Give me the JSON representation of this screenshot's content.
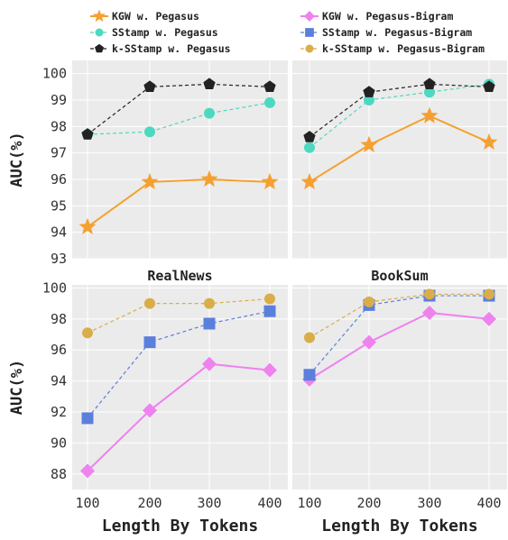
{
  "legend": [
    {
      "label": "KGW w. Pegasus",
      "marker": "star",
      "color": "#f5a030",
      "dashed": false
    },
    {
      "label": "SStamp w. Pegasus",
      "marker": "circle",
      "color": "#4dd8c0",
      "dashed": true
    },
    {
      "label": "k-SStamp w. Pegasus",
      "marker": "pentagon",
      "color": "#222222",
      "dashed": true
    },
    {
      "label": "KGW w. Pegasus-Bigram",
      "marker": "diamond",
      "color": "#ee82ee",
      "dashed": false
    },
    {
      "label": "SStamp w. Pegasus-Bigram",
      "marker": "square",
      "color": "#5b7fdc",
      "dashed": true
    },
    {
      "label": "k-SStamp w. Pegasus-Bigram",
      "marker": "circle",
      "color": "#d9ad48",
      "dashed": true
    }
  ],
  "chart_data": [
    {
      "type": "line",
      "title": "",
      "xlabel": "",
      "ylabel": "AUC(%)",
      "x": [
        100,
        200,
        300,
        400
      ],
      "ylim": [
        93,
        100.5
      ],
      "yticks": [
        93,
        94,
        95,
        96,
        97,
        98,
        99,
        100
      ],
      "grid": true,
      "series": [
        {
          "name": "KGW w. Pegasus",
          "values": [
            94.2,
            95.9,
            96.0,
            95.9
          ],
          "color": "#f5a030",
          "marker": "star",
          "dashed": false
        },
        {
          "name": "SStamp w. Pegasus",
          "values": [
            97.7,
            97.8,
            98.5,
            98.9
          ],
          "color": "#4dd8c0",
          "marker": "circle",
          "dashed": true
        },
        {
          "name": "k-SStamp w. Pegasus",
          "values": [
            97.7,
            99.5,
            99.6,
            99.5
          ],
          "color": "#222222",
          "marker": "pentagon",
          "dashed": true
        }
      ]
    },
    {
      "type": "line",
      "title": "",
      "xlabel": "",
      "ylabel": "",
      "x": [
        100,
        200,
        300,
        400
      ],
      "ylim": [
        93,
        100.5
      ],
      "yticks": [
        93,
        94,
        95,
        96,
        97,
        98,
        99,
        100
      ],
      "grid": true,
      "series": [
        {
          "name": "KGW w. Pegasus",
          "values": [
            95.9,
            97.3,
            98.4,
            97.4
          ],
          "color": "#f5a030",
          "marker": "star",
          "dashed": false
        },
        {
          "name": "SStamp w. Pegasus",
          "values": [
            97.2,
            99.0,
            99.3,
            99.6
          ],
          "color": "#4dd8c0",
          "marker": "circle",
          "dashed": true
        },
        {
          "name": "k-SStamp w. Pegasus",
          "values": [
            97.6,
            99.3,
            99.6,
            99.5
          ],
          "color": "#222222",
          "marker": "pentagon",
          "dashed": true
        }
      ]
    },
    {
      "type": "line",
      "title": "RealNews",
      "xlabel": "Length By Tokens",
      "ylabel": "AUC(%)",
      "x": [
        100,
        200,
        300,
        400
      ],
      "ylim": [
        87,
        100.2
      ],
      "yticks": [
        88,
        90,
        92,
        94,
        96,
        98,
        100
      ],
      "grid": true,
      "series": [
        {
          "name": "KGW w. Pegasus-Bigram",
          "values": [
            88.2,
            92.1,
            95.1,
            94.7
          ],
          "color": "#ee82ee",
          "marker": "diamond",
          "dashed": false
        },
        {
          "name": "SStamp w. Pegasus-Bigram",
          "values": [
            91.6,
            96.5,
            97.7,
            98.5
          ],
          "color": "#5b7fdc",
          "marker": "square",
          "dashed": true
        },
        {
          "name": "k-SStamp w. Pegasus-Bigram",
          "values": [
            97.1,
            99.0,
            99.0,
            99.3
          ],
          "color": "#d9ad48",
          "marker": "circle",
          "dashed": true
        }
      ]
    },
    {
      "type": "line",
      "title": "BookSum",
      "xlabel": "Length By Tokens",
      "ylabel": "",
      "x": [
        100,
        200,
        300,
        400
      ],
      "ylim": [
        87,
        100.2
      ],
      "yticks": [
        88,
        90,
        92,
        94,
        96,
        98,
        100
      ],
      "grid": true,
      "series": [
        {
          "name": "KGW w. Pegasus-Bigram",
          "values": [
            94.1,
            96.5,
            98.4,
            98.0
          ],
          "color": "#ee82ee",
          "marker": "diamond",
          "dashed": false
        },
        {
          "name": "SStamp w. Pegasus-Bigram",
          "values": [
            94.4,
            98.9,
            99.5,
            99.5
          ],
          "color": "#5b7fdc",
          "marker": "square",
          "dashed": true
        },
        {
          "name": "k-SStamp w. Pegasus-Bigram",
          "values": [
            96.8,
            99.1,
            99.6,
            99.6
          ],
          "color": "#d9ad48",
          "marker": "circle",
          "dashed": true
        }
      ]
    }
  ]
}
